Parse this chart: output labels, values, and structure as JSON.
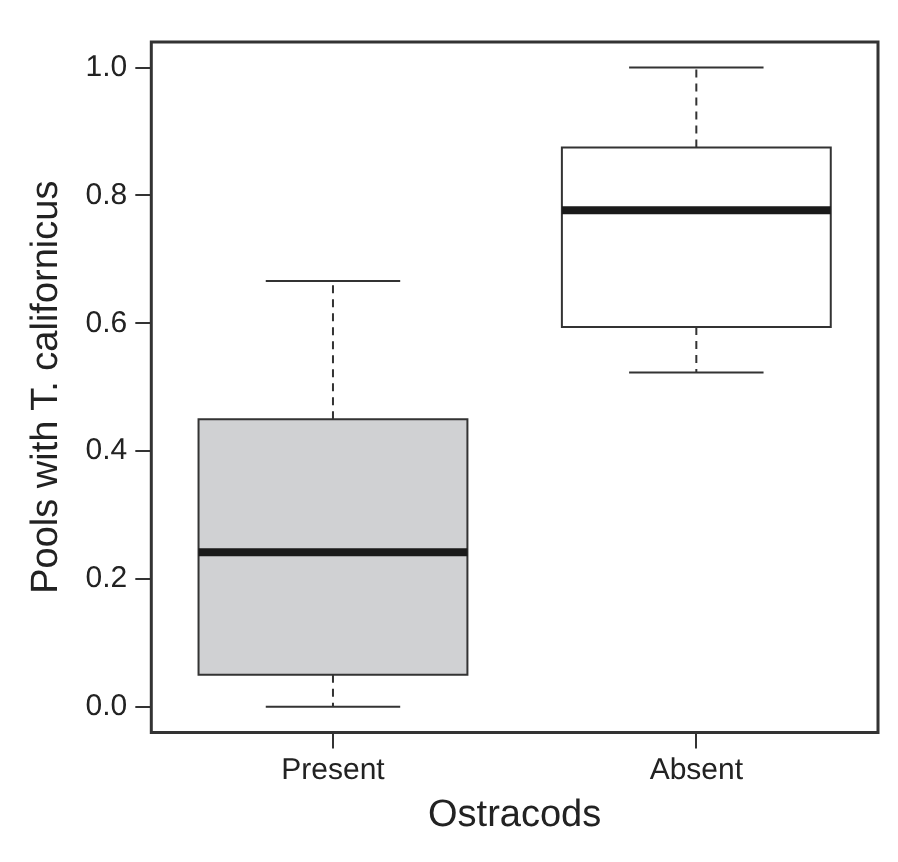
{
  "chart_data": {
    "type": "box",
    "xlabel": "Ostracods",
    "ylabel": "Pools with T. californicus",
    "categories": [
      "Present",
      "Absent"
    ],
    "colors": [
      "#d0d1d3",
      "#ffffff"
    ],
    "boxes": [
      {
        "low": 0,
        "q1": 0.05,
        "median": 0.242,
        "q3": 0.45,
        "high": 0.666
      },
      {
        "low": 0.523,
        "q1": 0.594,
        "median": 0.777,
        "q3": 0.875,
        "high": 1.0
      }
    ],
    "ylim": [
      -0.04,
      1.04
    ],
    "yticks": [
      {
        "value": 0,
        "label": "0.0"
      },
      {
        "value": 0.2,
        "label": "0.2"
      },
      {
        "value": 0.4,
        "label": "0.4"
      },
      {
        "value": 0.6,
        "label": "0.6"
      },
      {
        "value": 0.8,
        "label": "0.8"
      },
      {
        "value": 1,
        "label": "1.0"
      }
    ],
    "grid": false
  }
}
